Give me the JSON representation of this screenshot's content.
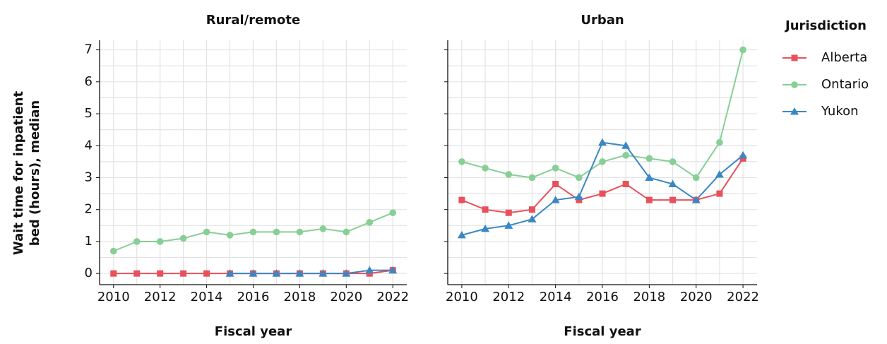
{
  "chart_data": [
    {
      "type": "line",
      "title": "Rural/remote",
      "xlabel": "Fiscal year",
      "ylabel": "Wait time for inpatient bed (hours), median",
      "x": [
        2010,
        2011,
        2012,
        2013,
        2014,
        2015,
        2016,
        2017,
        2018,
        2019,
        2020,
        2021,
        2022
      ],
      "xlim": [
        2009.4,
        2022.6
      ],
      "xticks": [
        2010,
        2012,
        2014,
        2016,
        2018,
        2020,
        2022
      ],
      "xminorticks": [
        2011,
        2013,
        2015,
        2017,
        2019,
        2021
      ],
      "ylim": [
        -0.35,
        7.3
      ],
      "yticks": [
        0,
        1,
        2,
        3,
        4,
        5,
        6,
        7
      ],
      "yminorticks": [
        0.5,
        1.5,
        2.5,
        3.5,
        4.5,
        5.5,
        6.5
      ],
      "grid": true,
      "series": [
        {
          "name": "Alberta",
          "color": "#e8505b",
          "marker": "square",
          "values": [
            0,
            0,
            0,
            0,
            0,
            0,
            0,
            0,
            0,
            0,
            0,
            0,
            0.1
          ]
        },
        {
          "name": "Ontario",
          "color": "#86cf95",
          "marker": "circle",
          "values": [
            0.7,
            1.0,
            1.0,
            1.1,
            1.3,
            1.2,
            1.3,
            1.3,
            1.3,
            1.4,
            1.3,
            1.6,
            1.9
          ]
        },
        {
          "name": "Yukon",
          "color": "#3b87c3",
          "marker": "triangle",
          "values": [
            null,
            null,
            null,
            null,
            null,
            0,
            0,
            0,
            0,
            0,
            0,
            0.1,
            0.1
          ]
        }
      ]
    },
    {
      "type": "line",
      "title": "Urban",
      "xlabel": "Fiscal year",
      "legend_title": "Jurisdiction",
      "legend": "right",
      "x": [
        2010,
        2011,
        2012,
        2013,
        2014,
        2015,
        2016,
        2017,
        2018,
        2019,
        2020,
        2021,
        2022
      ],
      "xlim": [
        2009.4,
        2022.6
      ],
      "xticks": [
        2010,
        2012,
        2014,
        2016,
        2018,
        2020,
        2022
      ],
      "xminorticks": [
        2011,
        2013,
        2015,
        2017,
        2019,
        2021
      ],
      "ylim": [
        -0.35,
        7.3
      ],
      "yticks": [
        0,
        1,
        2,
        3,
        4,
        5,
        6,
        7
      ],
      "yminorticks": [
        0.5,
        1.5,
        2.5,
        3.5,
        4.5,
        5.5,
        6.5
      ],
      "grid": true,
      "ytick_labels": false,
      "series": [
        {
          "name": "Alberta",
          "color": "#e8505b",
          "marker": "square",
          "values": [
            2.3,
            2.0,
            1.9,
            2.0,
            2.8,
            2.3,
            2.5,
            2.8,
            2.3,
            2.3,
            2.3,
            2.5,
            3.6
          ]
        },
        {
          "name": "Ontario",
          "color": "#86cf95",
          "marker": "circle",
          "values": [
            3.5,
            3.3,
            3.1,
            3.0,
            3.3,
            3.0,
            3.5,
            3.7,
            3.6,
            3.5,
            3.0,
            4.1,
            7.0
          ]
        },
        {
          "name": "Yukon",
          "color": "#3b87c3",
          "marker": "triangle",
          "values": [
            1.2,
            1.4,
            1.5,
            1.7,
            2.3,
            2.4,
            4.1,
            4.0,
            3.0,
            2.8,
            2.3,
            3.1,
            3.7
          ]
        }
      ]
    }
  ]
}
